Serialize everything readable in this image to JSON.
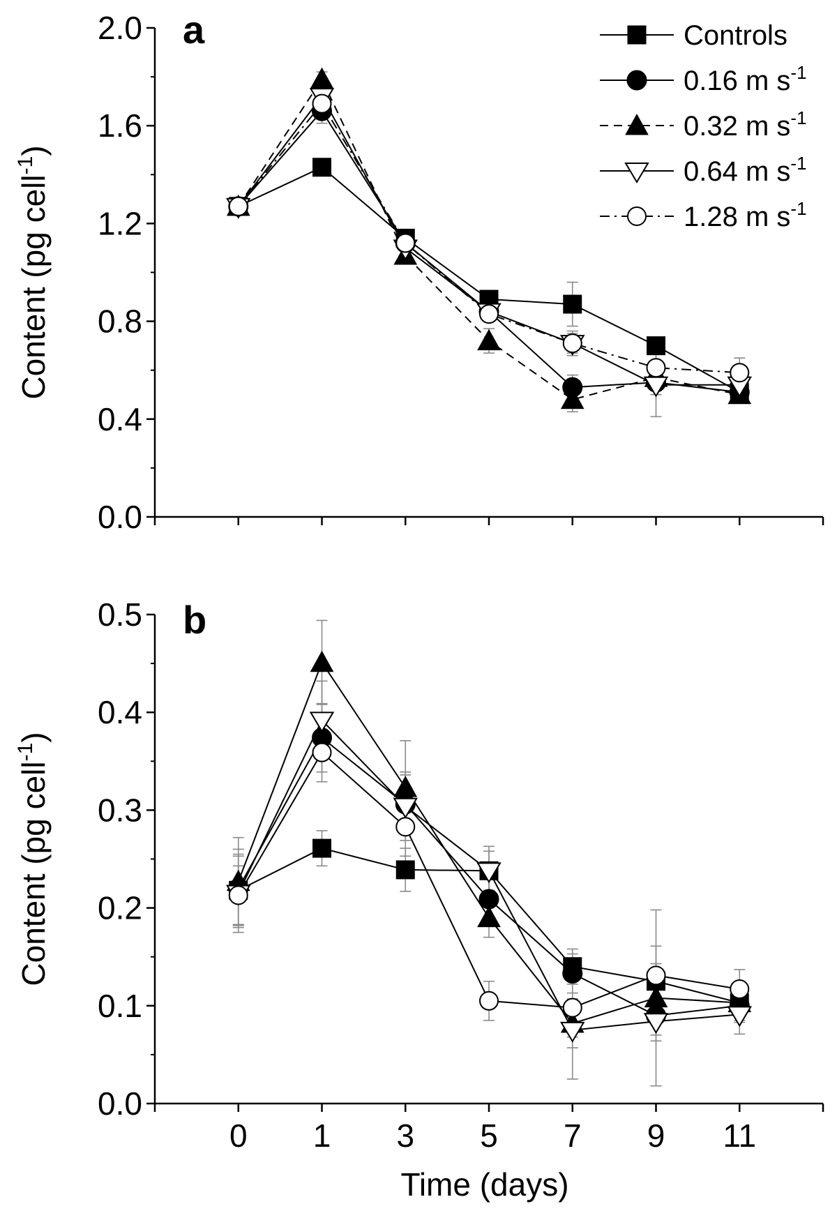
{
  "chart_data": [
    {
      "panel": "a",
      "type": "line",
      "ylabel": "Content (pg cell",
      "ylabel_sup": "-1",
      "ylabel_end": ")",
      "ylim": [
        0.0,
        2.0
      ],
      "yticks": [
        "0.0",
        "0.4",
        "0.8",
        "1.2",
        "1.6",
        "2.0"
      ],
      "categories": [
        "0",
        "1",
        "3",
        "5",
        "7",
        "9",
        "11"
      ],
      "error_bars": true,
      "legend": {
        "placement": "top-right",
        "entries": [
          {
            "label": "Controls",
            "sup": "",
            "marker": "square-filled",
            "dash": "solid"
          },
          {
            "label": "0.16 m s",
            "sup": "-1",
            "marker": "circle-filled",
            "dash": "solid"
          },
          {
            "label": "0.32 m s",
            "sup": "-1",
            "marker": "triangle-up-filled",
            "dash": "dashed"
          },
          {
            "label": "0.64 m s",
            "sup": "-1",
            "marker": "triangle-down-open",
            "dash": "solid"
          },
          {
            "label": "1.28 m s",
            "sup": "-1",
            "marker": "circle-open",
            "dash": "dashdot"
          }
        ]
      },
      "series": [
        {
          "name": "Controls",
          "marker": "square-filled",
          "dash": "solid",
          "values": [
            1.27,
            1.43,
            1.14,
            0.89,
            0.87,
            0.7,
            0.51
          ],
          "errors": [
            0.02,
            0.02,
            0.02,
            0.02,
            0.09,
            0.03,
            0.03
          ]
        },
        {
          "name": "0.16 m s-1",
          "marker": "circle-filled",
          "dash": "solid",
          "values": [
            1.27,
            1.66,
            1.12,
            0.84,
            0.53,
            0.55,
            0.51
          ],
          "errors": [
            0.02,
            0.05,
            0.03,
            0.03,
            0.05,
            0.05,
            0.03
          ]
        },
        {
          "name": "0.32 m s-1",
          "marker": "triangle-up-filled",
          "dash": "dashed",
          "values": [
            1.27,
            1.79,
            1.07,
            0.72,
            0.48,
            0.57,
            0.5
          ],
          "errors": [
            0.02,
            0.03,
            0.03,
            0.05,
            0.05,
            0.05,
            0.03
          ]
        },
        {
          "name": "0.64 m s-1",
          "marker": "triangle-down-open",
          "dash": "solid",
          "values": [
            1.27,
            1.72,
            1.1,
            0.84,
            0.71,
            0.54,
            0.54
          ],
          "errors": [
            0.02,
            0.04,
            0.03,
            0.03,
            0.05,
            0.13,
            0.03
          ]
        },
        {
          "name": "1.28 m s-1",
          "marker": "circle-open",
          "dash": "dashdot",
          "values": [
            1.27,
            1.69,
            1.12,
            0.83,
            0.71,
            0.61,
            0.59
          ],
          "errors": [
            0.02,
            0.04,
            0.03,
            0.03,
            0.04,
            0.09,
            0.06
          ]
        }
      ]
    },
    {
      "panel": "b",
      "type": "line",
      "xlabel": "Time (days)",
      "ylabel": "Content (pg cell",
      "ylabel_sup": "-1",
      "ylabel_end": ")",
      "ylim": [
        0.0,
        0.5
      ],
      "yticks": [
        "0.0",
        "0.1",
        "0.2",
        "0.3",
        "0.4",
        "0.5"
      ],
      "categories": [
        "0",
        "1",
        "3",
        "5",
        "7",
        "9",
        "11"
      ],
      "error_bars": true,
      "series": [
        {
          "name": "Controls",
          "marker": "square-filled",
          "dash": "solid",
          "values": [
            0.218,
            0.261,
            0.239,
            0.238,
            0.14,
            0.125,
            0.103
          ],
          "errors": [
            0.035,
            0.018,
            0.022,
            0.02,
            0.018,
            0.018,
            0.015
          ]
        },
        {
          "name": "0.16 m s-1",
          "marker": "circle-filled",
          "dash": "solid",
          "values": [
            0.22,
            0.374,
            0.306,
            0.209,
            0.133,
            0.09,
            0.1
          ],
          "errors": [
            0.04,
            0.035,
            0.03,
            0.025,
            0.02,
            0.02,
            0.015
          ]
        },
        {
          "name": "0.32 m s-1",
          "marker": "triangle-up-filled",
          "dash": "solid",
          "values": [
            0.227,
            0.451,
            0.323,
            0.19,
            0.082,
            0.108,
            0.103
          ],
          "errors": [
            0.045,
            0.043,
            0.048,
            0.02,
            0.025,
            0.09,
            0.02
          ]
        },
        {
          "name": "0.64 m s-1",
          "marker": "triangle-down-open",
          "dash": "solid",
          "values": [
            0.215,
            0.392,
            0.304,
            0.238,
            0.075,
            0.084,
            0.091
          ],
          "errors": [
            0.04,
            0.04,
            0.035,
            0.025,
            0.05,
            0.02,
            0.02
          ]
        },
        {
          "name": "1.28 m s-1",
          "marker": "circle-open",
          "dash": "solid",
          "values": [
            0.213,
            0.359,
            0.283,
            0.105,
            0.098,
            0.131,
            0.117
          ],
          "errors": [
            0.03,
            0.03,
            0.03,
            0.02,
            0.03,
            0.03,
            0.02
          ]
        }
      ]
    }
  ],
  "panels": [
    {
      "label": "a"
    },
    {
      "label": "b"
    }
  ]
}
